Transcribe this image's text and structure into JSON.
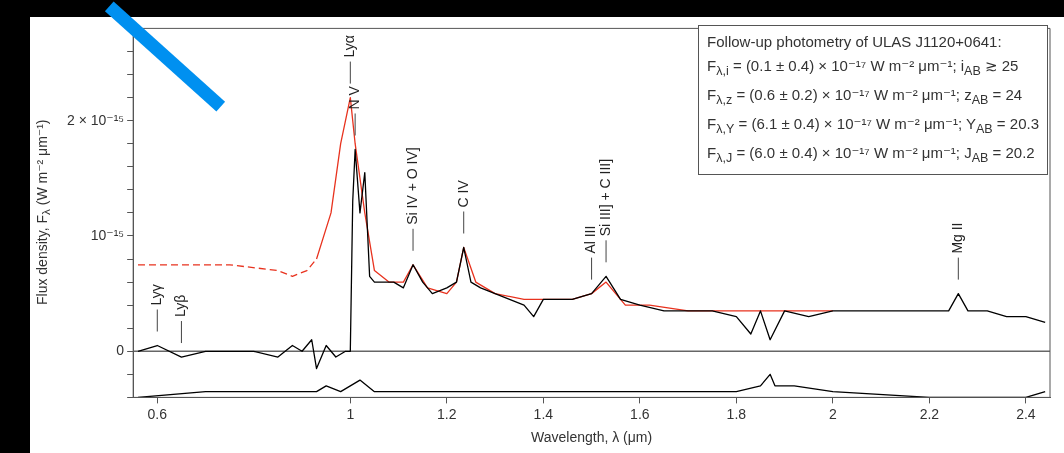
{
  "chart_data": {
    "type": "line",
    "xlabel": "Wavelength, λ (μm)",
    "ylabel": "Flux density, F$_{λ}$ (W m⁻² μm⁻¹)",
    "xlim": [
      0.55,
      2.45
    ],
    "xticks": [
      0.6,
      1,
      1.2,
      1.4,
      1.6,
      1.8,
      2,
      2.2,
      2.4
    ],
    "ylim": [
      -4e-16,
      2.8e-15
    ],
    "yticks": [
      {
        "value": -4e-16,
        "label": null
      },
      {
        "value": -2e-16,
        "label": null
      },
      0,
      {
        "value": 2e-16,
        "label": null
      },
      {
        "value": 4e-16,
        "label": null
      },
      {
        "value": 6e-16,
        "label": null
      },
      {
        "value": 8e-16,
        "label": null
      },
      {
        "value": 1e-15,
        "label": "10⁻¹⁵"
      },
      {
        "value": 1.2e-15,
        "label": null
      },
      {
        "value": 1.4e-15,
        "label": null
      },
      {
        "value": 1.6e-15,
        "label": null
      },
      {
        "value": 1.8e-15,
        "label": null
      },
      {
        "value": 2e-15,
        "label": "2 × 10⁻¹⁵"
      },
      {
        "value": 2.2e-15,
        "label": null
      },
      {
        "value": 2.4e-15,
        "label": null
      },
      {
        "value": 2.6e-15,
        "label": null
      },
      {
        "value": 2.8e-15,
        "label": null
      }
    ],
    "marker": "none",
    "series": [
      {
        "color": "#000000",
        "x": [
          0.56,
          0.6,
          0.65,
          0.7,
          0.75,
          0.8,
          0.85,
          0.88,
          0.9,
          0.92,
          0.93,
          0.95,
          0.97,
          0.99,
          1.0,
          1.005,
          1.01,
          1.02,
          1.03,
          1.04,
          1.05,
          1.07,
          1.09,
          1.11,
          1.13,
          1.15,
          1.17,
          1.2,
          1.22,
          1.235,
          1.25,
          1.27,
          1.3,
          1.33,
          1.36,
          1.38,
          1.4,
          1.43,
          1.46,
          1.5,
          1.53,
          1.56,
          1.6,
          1.65,
          1.7,
          1.75,
          1.8,
          1.83,
          1.85,
          1.87,
          1.9,
          1.95,
          2.0,
          2.05,
          2.1,
          2.15,
          2.2,
          2.24,
          2.26,
          2.28,
          2.32,
          2.36,
          2.4,
          2.44
        ],
        "values": [
          0,
          5e-17,
          -5e-17,
          0,
          0,
          0,
          -5e-17,
          5e-17,
          0,
          1e-16,
          -1.5e-16,
          5e-17,
          -5e-17,
          0,
          0,
          1.3e-15,
          1.75e-15,
          1.2e-15,
          1.55e-15,
          6.5e-16,
          6e-16,
          6e-16,
          6e-16,
          5.5e-16,
          7.5e-16,
          6e-16,
          5e-16,
          5.5e-16,
          6e-16,
          9e-16,
          6e-16,
          5.5e-16,
          5e-16,
          4.5e-16,
          4e-16,
          3e-16,
          4.5e-16,
          4.5e-16,
          4.5e-16,
          5e-16,
          6.5e-16,
          4.5e-16,
          4e-16,
          3.5e-16,
          3.5e-16,
          3.5e-16,
          3e-16,
          1.5e-16,
          3.5e-16,
          1e-16,
          3.5e-16,
          3e-16,
          3.5e-16,
          3.5e-16,
          3.5e-16,
          3.5e-16,
          3.5e-16,
          3.5e-16,
          5e-16,
          3.5e-16,
          3.5e-16,
          3e-16,
          3e-16,
          2.5e-16
        ]
      },
      {
        "color": "#e8321e",
        "line_style": "dashed",
        "x": [
          0.56,
          0.65,
          0.75,
          0.85,
          0.88,
          0.91,
          0.93
        ],
        "values": [
          7.5e-16,
          7.5e-16,
          7.5e-16,
          7e-16,
          6.5e-16,
          7e-16,
          8e-16
        ]
      },
      {
        "color": "#e8321e",
        "line_style": "solid",
        "x": [
          0.93,
          0.96,
          0.98,
          1.0,
          1.01,
          1.03,
          1.05,
          1.08,
          1.11,
          1.13,
          1.16,
          1.2,
          1.22,
          1.235,
          1.26,
          1.3,
          1.36,
          1.4,
          1.46,
          1.5,
          1.53,
          1.57,
          1.62,
          1.7,
          1.8,
          1.9,
          2.0
        ],
        "values": [
          8e-16,
          1.2e-15,
          1.8e-15,
          2.2e-15,
          1.8e-15,
          1.2e-15,
          7e-16,
          6e-16,
          6e-16,
          7.5e-16,
          5.5e-16,
          5e-16,
          6e-16,
          9e-16,
          6e-16,
          5e-16,
          4.5e-16,
          4.5e-16,
          4.5e-16,
          5e-16,
          6e-16,
          4e-16,
          4e-16,
          3.5e-16,
          3.5e-16,
          3.5e-16,
          3.5e-16
        ]
      },
      {
        "color": "#000000",
        "x": [
          0.56,
          0.7,
          0.85,
          0.93,
          0.95,
          0.98,
          1.02,
          1.05,
          1.1,
          1.2,
          1.3,
          1.4,
          1.5,
          1.6,
          1.7,
          1.8,
          1.85,
          1.87,
          1.88,
          1.92,
          2.0,
          2.2,
          2.4,
          2.44
        ],
        "values": [
          -4e-16,
          -3.5e-16,
          -3.5e-16,
          -3.5e-16,
          -3e-16,
          -3.5e-16,
          -2.5e-16,
          -3.5e-16,
          -3.5e-16,
          -3.5e-16,
          -3.5e-16,
          -3.5e-16,
          -3.5e-16,
          -3.5e-16,
          -3.5e-16,
          -3.5e-16,
          -3e-16,
          -2e-16,
          -3e-16,
          -3e-16,
          -3.5e-16,
          -4e-16,
          -4e-16,
          -3.5e-16
        ]
      }
    ],
    "ref_lines": [
      {
        "axis": "y",
        "value": 0,
        "color": "#666666"
      }
    ],
    "annotations": [
      "Follow-up photometry of ULAS J1120+0641:",
      "F$_{λ,i}$ = (0.1 ± 0.4) × 10⁻¹⁷ W m⁻² μm⁻¹; i$_{AB}$ ≳ 25",
      "F$_{λ,z}$ = (0.6 ± 0.2) × 10⁻¹⁷ W m⁻² μm⁻¹; z$_{AB}$ = 24",
      "F$_{λ,Y}$ = (6.1 ± 0.4) × 10⁻¹⁷ W m⁻² μm⁻¹; Y$_{AB}$ = 20.3",
      "F$_{λ,J}$ = (6.0 ± 0.4) × 10⁻¹⁷ W m⁻² μm⁻¹; J$_{AB}$ = 20.2",
      {
        "text": "Lyα",
        "x": 1.0,
        "y": 2.2e-15
      },
      {
        "text": "N V",
        "x": 1.01,
        "y": 1.75e-15
      },
      {
        "text": "Si IV + O IV]",
        "x": 1.13,
        "y": 7.5e-16
      },
      {
        "text": "C IV",
        "x": 1.235,
        "y": 9e-16
      },
      {
        "text": "Al III",
        "x": 1.5,
        "y": 5e-16
      },
      {
        "text": "Si III] + C III]",
        "x": 1.53,
        "y": 6.5e-16
      },
      {
        "text": "Mg II",
        "x": 2.26,
        "y": 5e-16
      },
      {
        "text": "Lyγ",
        "x": 0.6,
        "y": 5e-17
      },
      {
        "text": "Lyβ",
        "x": 0.65,
        "y": -5e-17
      }
    ]
  }
}
